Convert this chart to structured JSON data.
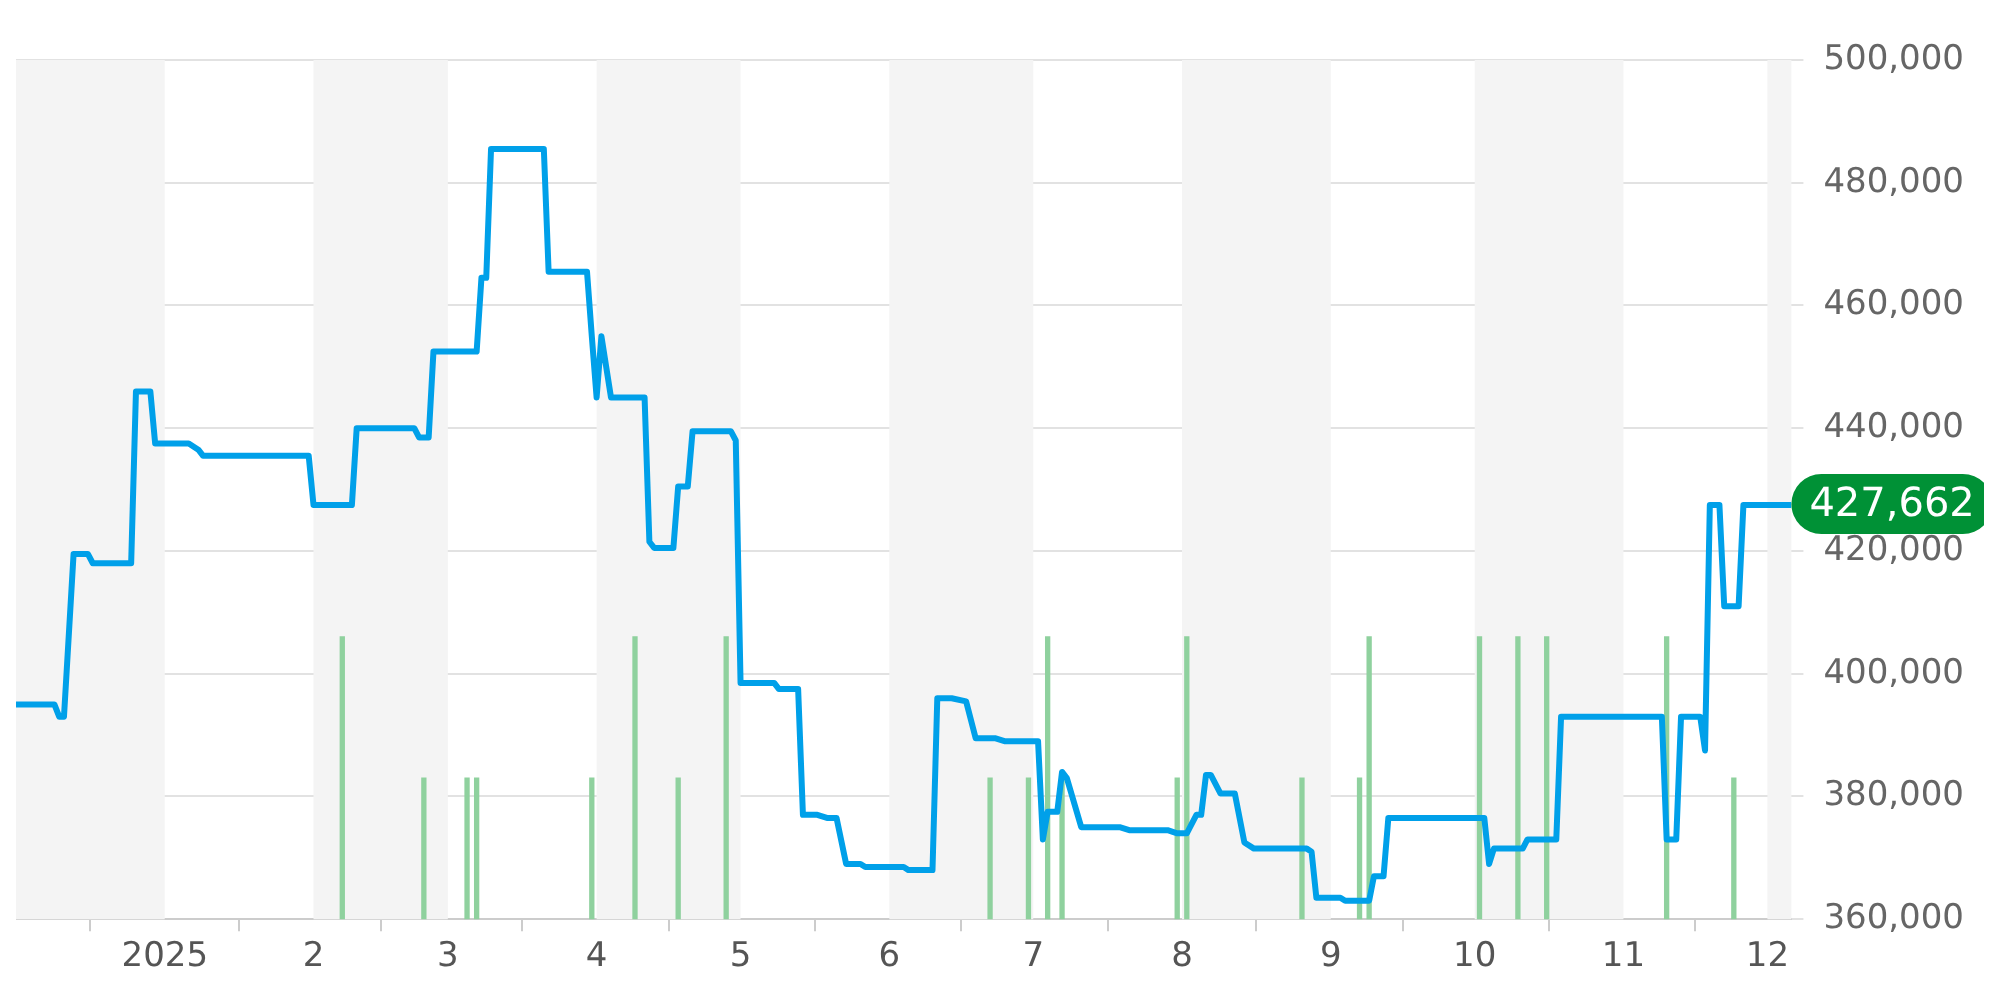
{
  "chart_data": {
    "type": "line",
    "xlim": [
      "2024-12-01",
      "2025-12-06"
    ],
    "xticks": [
      {
        "value": "2025-01-01",
        "label": "2025"
      },
      {
        "value": "2025-02-01",
        "label": "2"
      },
      {
        "value": "2025-03-01",
        "label": "3"
      },
      {
        "value": "2025-04-01",
        "label": "4"
      },
      {
        "value": "2025-05-01",
        "label": "5"
      },
      {
        "value": "2025-06-01",
        "label": "6"
      },
      {
        "value": "2025-07-01",
        "label": "7"
      },
      {
        "value": "2025-08-01",
        "label": "8"
      },
      {
        "value": "2025-09-01",
        "label": "9"
      },
      {
        "value": "2025-10-01",
        "label": "10"
      },
      {
        "value": "2025-11-01",
        "label": "11"
      },
      {
        "value": "2025-12-01",
        "label": "12"
      }
    ],
    "ylim": [
      360000,
      500000
    ],
    "yticks": [
      {
        "value": 360000,
        "label": "360,000"
      },
      {
        "value": 380000,
        "label": "380,000"
      },
      {
        "value": 400000,
        "label": "400,000"
      },
      {
        "value": 420000,
        "label": "420,000"
      },
      {
        "value": 440000,
        "label": "440,000"
      },
      {
        "value": 460000,
        "label": "460,000"
      },
      {
        "value": 480000,
        "label": "480,000"
      },
      {
        "value": 500000,
        "label": "500,000"
      }
    ],
    "grid": "y",
    "legend": false,
    "marker": "none",
    "line_style": "solid",
    "bands": [
      {
        "axis": "x",
        "from": "2024-12-01",
        "to": "2025-01-01",
        "color": "#f4f4f4"
      },
      {
        "axis": "x",
        "from": "2025-02-01",
        "to": "2025-03-01",
        "color": "#f4f4f4"
      },
      {
        "axis": "x",
        "from": "2025-04-01",
        "to": "2025-05-01",
        "color": "#f4f4f4"
      },
      {
        "axis": "x",
        "from": "2025-06-01",
        "to": "2025-07-01",
        "color": "#f4f4f4"
      },
      {
        "axis": "x",
        "from": "2025-08-01",
        "to": "2025-09-01",
        "color": "#f4f4f4"
      },
      {
        "axis": "x",
        "from": "2025-10-01",
        "to": "2025-11-01",
        "color": "#f4f4f4"
      },
      {
        "axis": "x",
        "from": "2025-12-01",
        "to": "2025-12-06",
        "color": "#f4f4f4"
      }
    ],
    "annotations": [
      {
        "text": "427,662",
        "x": "2025-12-06",
        "y": 427662
      }
    ],
    "series": [
      {
        "type": "bar",
        "color": "#8fd19e",
        "x": [
          "2025-02-07",
          "2025-02-24",
          "2025-03-05",
          "2025-03-07",
          "2025-03-31",
          "2025-04-09",
          "2025-04-18",
          "2025-04-28",
          "2025-06-22",
          "2025-06-30",
          "2025-07-04",
          "2025-07-07",
          "2025-07-31",
          "2025-08-02",
          "2025-08-26",
          "2025-09-07",
          "2025-09-09",
          "2025-10-02",
          "2025-10-10",
          "2025-10-16",
          "2025-11-10",
          "2025-11-24"
        ],
        "values": [
          406000,
          383000,
          383000,
          383000,
          383000,
          406000,
          383000,
          406000,
          383000,
          383000,
          406000,
          383000,
          383000,
          406000,
          383000,
          383000,
          406000,
          406000,
          406000,
          406000,
          406000,
          383000
        ]
      },
      {
        "color": "#00a0e9",
        "x": [
          "2024-12-01",
          "2024-12-09",
          "2024-12-10",
          "2024-12-11",
          "2024-12-13",
          "2024-12-16",
          "2024-12-17",
          "2024-12-25",
          "2024-12-26",
          "2024-12-29",
          "2024-12-30",
          "2025-01-06",
          "2025-01-08",
          "2025-01-09",
          "2025-01-31",
          "2025-02-01",
          "2025-02-09",
          "2025-02-10",
          "2025-02-22",
          "2025-02-23",
          "2025-02-25",
          "2025-02-26",
          "2025-03-07",
          "2025-03-08",
          "2025-03-09",
          "2025-03-10",
          "2025-03-21",
          "2025-03-22",
          "2025-03-30",
          "2025-03-31",
          "2025-04-01",
          "2025-04-02",
          "2025-04-04",
          "2025-04-11",
          "2025-04-12",
          "2025-04-13",
          "2025-04-17",
          "2025-04-18",
          "2025-04-20",
          "2025-04-21",
          "2025-04-29",
          "2025-04-30",
          "2025-05-01",
          "2025-05-08",
          "2025-05-09",
          "2025-05-13",
          "2025-05-14",
          "2025-05-17",
          "2025-05-19",
          "2025-05-21",
          "2025-05-23",
          "2025-05-26",
          "2025-05-27",
          "2025-06-04",
          "2025-06-05",
          "2025-06-10",
          "2025-06-11",
          "2025-06-14",
          "2025-06-17",
          "2025-06-19",
          "2025-06-23",
          "2025-06-25",
          "2025-07-02",
          "2025-07-03",
          "2025-07-04",
          "2025-07-06",
          "2025-07-07",
          "2025-07-08",
          "2025-07-11",
          "2025-07-19",
          "2025-07-21",
          "2025-07-29",
          "2025-07-31",
          "2025-08-02",
          "2025-08-04",
          "2025-08-05",
          "2025-08-06",
          "2025-08-07",
          "2025-08-09",
          "2025-08-12",
          "2025-08-14",
          "2025-08-16",
          "2025-08-27",
          "2025-08-28",
          "2025-08-29",
          "2025-09-03",
          "2025-09-04",
          "2025-09-09",
          "2025-09-10",
          "2025-09-12",
          "2025-09-13",
          "2025-10-03",
          "2025-10-04",
          "2025-10-05",
          "2025-10-11",
          "2025-10-12",
          "2025-10-18",
          "2025-10-19",
          "2025-11-09",
          "2025-11-10",
          "2025-11-12",
          "2025-11-13",
          "2025-11-17",
          "2025-11-18",
          "2025-11-19",
          "2025-11-21",
          "2025-11-22",
          "2025-11-25",
          "2025-11-26",
          "2025-12-06"
        ],
        "values": [
          395000,
          395000,
          393000,
          393000,
          419500,
          419500,
          418000,
          418000,
          446000,
          446000,
          437500,
          437500,
          436500,
          435500,
          435500,
          427500,
          427500,
          440000,
          440000,
          438500,
          438500,
          452500,
          452500,
          464500,
          464500,
          485500,
          485500,
          465500,
          465500,
          455000,
          445000,
          455000,
          445000,
          445000,
          421500,
          420500,
          420500,
          430500,
          430500,
          439500,
          439500,
          438000,
          398500,
          398500,
          397500,
          397500,
          377000,
          377000,
          376500,
          376500,
          369000,
          369000,
          368500,
          368500,
          368000,
          368000,
          396000,
          396000,
          395500,
          389500,
          389500,
          389000,
          389000,
          373000,
          377500,
          377500,
          384000,
          383000,
          375000,
          375000,
          374500,
          374500,
          374000,
          374000,
          377000,
          377000,
          383500,
          383500,
          380500,
          380500,
          372500,
          371500,
          371500,
          371000,
          363500,
          363500,
          363000,
          363000,
          367000,
          367000,
          376500,
          376500,
          369000,
          371500,
          371500,
          373000,
          373000,
          393000,
          393000,
          373000,
          373000,
          393000,
          393000,
          387500,
          427500,
          427500,
          411000,
          411000,
          427500,
          427500
        ]
      }
    ]
  }
}
